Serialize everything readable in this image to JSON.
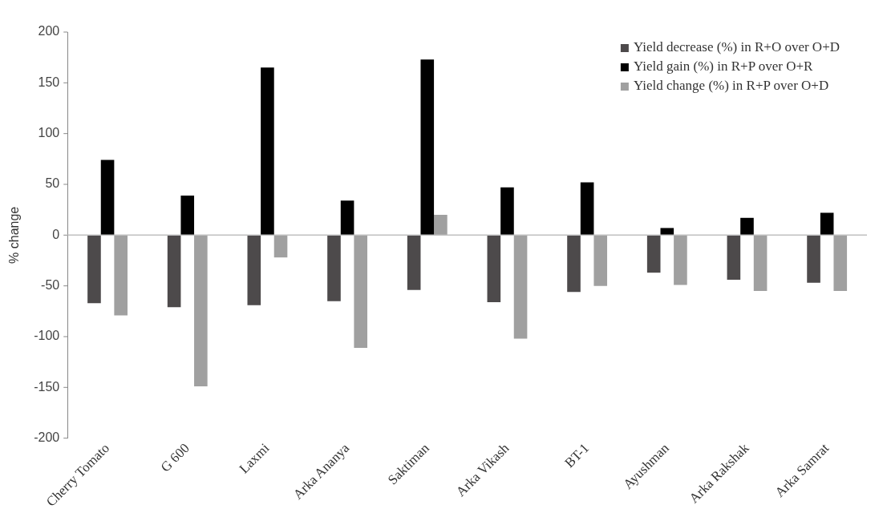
{
  "chart_data": {
    "type": "bar",
    "ylabel": "% change",
    "categories": [
      "Cherry Tomato",
      "G 600",
      "Laxmi",
      "Arka Ananya",
      "Saktiman",
      "Arka Vikash",
      "BT-1",
      "Ayushman",
      "Arka Rakshak",
      "Arka Samrat"
    ],
    "series": [
      {
        "name": "Yield decrease (%) in R+O over O+D",
        "color": "#4d4a4b",
        "values": [
          -67,
          -71,
          -69,
          -65,
          -54,
          -66,
          -56,
          -37,
          -44,
          -47
        ]
      },
      {
        "name": "Yield gain (%) in R+P over O+R",
        "color": "#000000",
        "values": [
          74,
          39,
          165,
          34,
          173,
          47,
          52,
          7,
          17,
          22
        ]
      },
      {
        "name": "Yield change (%) in R+P over O+D",
        "color": "#a0a0a0",
        "values": [
          -79,
          -149,
          -22,
          -111,
          20,
          -102,
          -50,
          -49,
          -55,
          -55
        ]
      }
    ],
    "ylim": [
      -200,
      200
    ],
    "yticks": [
      -200,
      -150,
      -100,
      -50,
      0,
      50,
      100,
      150,
      200
    ],
    "grid": false,
    "ref_lines": [
      {
        "axis": "y",
        "value": 0,
        "color": "#c0c0c0"
      }
    ],
    "legend": "top right"
  }
}
